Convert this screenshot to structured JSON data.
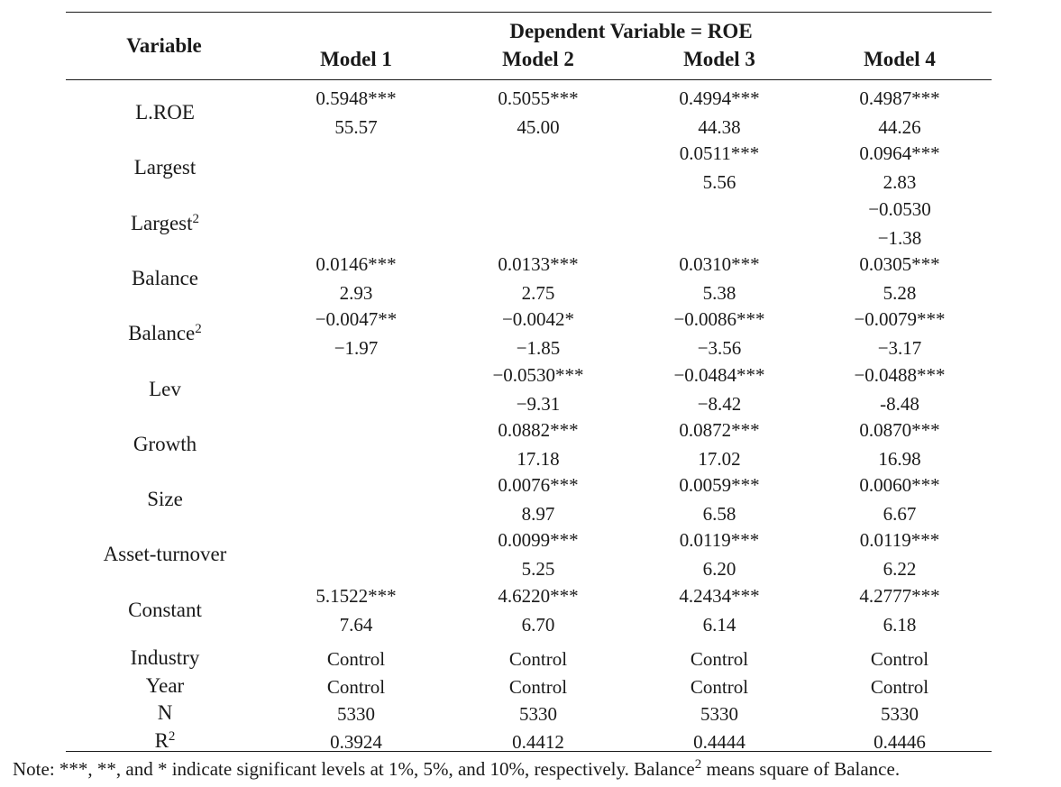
{
  "table": {
    "dependent_header": "Dependent Variable = ROE",
    "variable_header": "Variable",
    "models": [
      "Model 1",
      "Model 2",
      "Model 3",
      "Model 4"
    ],
    "rows": [
      {
        "label": "L.ROE",
        "sup": "",
        "type": "coef",
        "cells": [
          [
            "0.5948***",
            "55.57"
          ],
          [
            "0.5055***",
            "45.00"
          ],
          [
            "0.4994***",
            "44.38"
          ],
          [
            "0.4987***",
            "44.26"
          ]
        ]
      },
      {
        "label": "Largest",
        "sup": "",
        "type": "coef",
        "cells": [
          [
            "",
            ""
          ],
          [
            "",
            ""
          ],
          [
            "0.0511***",
            "5.56"
          ],
          [
            "0.0964***",
            "2.83"
          ]
        ]
      },
      {
        "label": "Largest",
        "sup": "2",
        "type": "coef",
        "cells": [
          [
            "",
            ""
          ],
          [
            "",
            ""
          ],
          [
            "",
            ""
          ],
          [
            "−0.0530",
            "−1.38"
          ]
        ]
      },
      {
        "label": "Balance",
        "sup": "",
        "type": "coef",
        "cells": [
          [
            "0.0146***",
            "2.93"
          ],
          [
            "0.0133***",
            "2.75"
          ],
          [
            "0.0310***",
            "5.38"
          ],
          [
            "0.0305***",
            "5.28"
          ]
        ]
      },
      {
        "label": "Balance",
        "sup": "2",
        "type": "coef",
        "cells": [
          [
            "−0.0047**",
            "−1.97"
          ],
          [
            "−0.0042*",
            "−1.85"
          ],
          [
            "−0.0086***",
            "−3.56"
          ],
          [
            "−0.0079***",
            "−3.17"
          ]
        ]
      },
      {
        "label": "Lev",
        "sup": "",
        "type": "coef",
        "cells": [
          [
            "",
            ""
          ],
          [
            "−0.0530***",
            "−9.31"
          ],
          [
            "−0.0484***",
            "−8.42"
          ],
          [
            "−0.0488***",
            "-8.48"
          ]
        ]
      },
      {
        "label": "Growth",
        "sup": "",
        "type": "coef",
        "cells": [
          [
            "",
            ""
          ],
          [
            "0.0882***",
            "17.18"
          ],
          [
            "0.0872***",
            "17.02"
          ],
          [
            "0.0870***",
            "16.98"
          ]
        ]
      },
      {
        "label": "Size",
        "sup": "",
        "type": "coef",
        "cells": [
          [
            "",
            ""
          ],
          [
            "0.0076***",
            "8.97"
          ],
          [
            "0.0059***",
            "6.58"
          ],
          [
            "0.0060***",
            "6.67"
          ]
        ]
      },
      {
        "label": "Asset-turnover",
        "sup": "",
        "type": "coef",
        "cells": [
          [
            "",
            ""
          ],
          [
            "0.0099***",
            "5.25"
          ],
          [
            "0.0119***",
            "6.20"
          ],
          [
            "0.0119***",
            "6.22"
          ]
        ]
      },
      {
        "label": "Constant",
        "sup": "",
        "type": "coef",
        "cells": [
          [
            "5.1522***",
            "7.64"
          ],
          [
            "4.6220***",
            "6.70"
          ],
          [
            "4.2434***",
            "6.14"
          ],
          [
            "4.2777***",
            "6.18"
          ]
        ]
      },
      {
        "label": "Industry",
        "sup": "",
        "type": "single",
        "cells": [
          "Control",
          "Control",
          "Control",
          "Control"
        ]
      },
      {
        "label": "Year",
        "sup": "",
        "type": "single",
        "cells": [
          "Control",
          "Control",
          "Control",
          "Control"
        ]
      },
      {
        "label": "N",
        "sup": "",
        "type": "single",
        "cells": [
          "5330",
          "5330",
          "5330",
          "5330"
        ]
      },
      {
        "label": "R",
        "sup": "2",
        "type": "single",
        "cells": [
          "0.3924",
          "0.4412",
          "0.4444",
          "0.4446"
        ]
      }
    ]
  },
  "note": {
    "before": "Note: ***, **, and * indicate significant levels at 1%, 5%, and 10%, respectively. Balance",
    "sup": "2",
    "after": " means square of Balance."
  }
}
